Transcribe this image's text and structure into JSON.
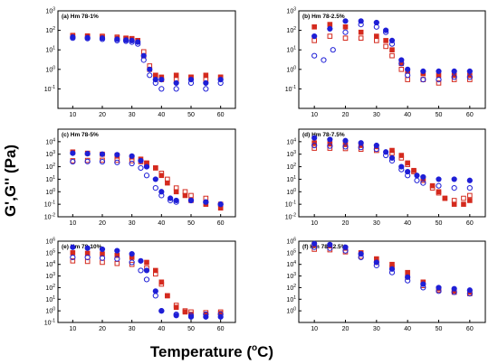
{
  "figure": {
    "ylabel": "G',G'' (Pa)",
    "xlabel": "Temperature (",
    "xlabel_unit": "o",
    "xlabel_tail": "C)"
  },
  "colors": {
    "red_series": "#d42a1e",
    "blue_series": "#1f1fd6",
    "highlight": "#ff9bd8"
  },
  "chart_data": [
    {
      "type": "scatter",
      "title": "(a) Hm 78-1%",
      "xlim": [
        5,
        65
      ],
      "xticks": [
        10,
        20,
        30,
        40,
        50,
        60
      ],
      "yscale": "log",
      "ylim": [
        0.01,
        1000
      ],
      "yticks": [
        "10^-1",
        "10^0",
        "10^1",
        "10^2",
        "10^3"
      ],
      "series": [
        {
          "color": "red",
          "marker": "filled",
          "x": [
            10,
            15,
            20,
            25,
            28,
            30,
            32,
            34,
            36,
            38,
            40,
            45,
            50,
            55,
            60
          ],
          "y": [
            50,
            48,
            45,
            40,
            38,
            35,
            30,
            5,
            1,
            0.5,
            0.4,
            0.5,
            0.4,
            0.5,
            0.4
          ]
        },
        {
          "color": "red",
          "marker": "open",
          "x": [
            10,
            15,
            20,
            25,
            28,
            30,
            32,
            34,
            36,
            38,
            40,
            45,
            50,
            55,
            60
          ],
          "y": [
            55,
            52,
            50,
            45,
            40,
            38,
            30,
            8,
            1.5,
            0.5,
            0.3,
            0.3,
            0.4,
            0.3,
            0.4
          ]
        },
        {
          "color": "blue",
          "marker": "filled",
          "x": [
            10,
            15,
            20,
            25,
            28,
            30,
            32,
            34,
            36,
            38,
            40,
            45,
            50,
            55,
            60
          ],
          "y": [
            45,
            42,
            40,
            35,
            32,
            30,
            25,
            5,
            1,
            0.3,
            0.3,
            0.2,
            0.3,
            0.2,
            0.3
          ]
        },
        {
          "color": "blue",
          "marker": "open",
          "x": [
            10,
            15,
            20,
            25,
            28,
            30,
            32,
            34,
            36,
            38,
            40,
            45,
            50,
            55,
            60
          ],
          "y": [
            40,
            38,
            35,
            30,
            28,
            25,
            20,
            3,
            0.5,
            0.2,
            0.1,
            0.1,
            0.2,
            0.1,
            0.2
          ]
        }
      ]
    },
    {
      "type": "scatter",
      "title": "(b) Hm 78-2.5%",
      "xlim": [
        5,
        65
      ],
      "xticks": [
        10,
        20,
        30,
        40,
        50,
        60
      ],
      "yscale": "log",
      "ylim": [
        0.01,
        1000
      ],
      "yticks": [
        "10^-1",
        "10^0",
        "10^1",
        "10^2",
        "10^3"
      ],
      "series": [
        {
          "color": "red",
          "marker": "filled",
          "x": [
            10,
            15,
            20,
            25,
            30,
            33,
            35,
            38,
            40,
            45,
            50,
            55,
            60
          ],
          "y": [
            150,
            200,
            150,
            80,
            50,
            30,
            10,
            2,
            0.8,
            0.6,
            0.5,
            0.5,
            0.5
          ]
        },
        {
          "color": "red",
          "marker": "open",
          "x": [
            10,
            15,
            20,
            25,
            30,
            33,
            35,
            38,
            40,
            45,
            50,
            55,
            60
          ],
          "y": [
            30,
            50,
            40,
            40,
            30,
            15,
            5,
            1,
            0.3,
            0.3,
            0.2,
            0.3,
            0.3
          ]
        },
        {
          "color": "blue",
          "marker": "filled",
          "x": [
            10,
            15,
            20,
            25,
            30,
            33,
            35,
            38,
            40,
            45,
            50,
            55,
            60
          ],
          "y": [
            50,
            120,
            300,
            300,
            250,
            100,
            30,
            3,
            1,
            0.8,
            0.8,
            0.8,
            0.8
          ]
        },
        {
          "color": "blue",
          "marker": "open",
          "x": [
            10,
            13,
            16,
            20,
            25,
            30,
            33,
            35,
            38,
            40,
            45,
            50,
            55,
            60
          ],
          "y": [
            5,
            3,
            10,
            80,
            200,
            150,
            80,
            20,
            2,
            0.5,
            0.3,
            0.3,
            0.4,
            0.4
          ]
        }
      ]
    },
    {
      "type": "scatter",
      "title": "(c) Hm 78-5%",
      "xlim": [
        5,
        65
      ],
      "xticks": [
        10,
        20,
        30,
        40,
        50,
        60
      ],
      "yscale": "log",
      "ylim": [
        0.01,
        100000
      ],
      "yticks": [
        "10^-2",
        "10^-1",
        "10^0",
        "10^1",
        "10^2",
        "10^3",
        "10^4"
      ],
      "series": [
        {
          "color": "red",
          "marker": "filled",
          "x": [
            10,
            15,
            20,
            25,
            30,
            33,
            35,
            38,
            40,
            42,
            45,
            48,
            50,
            55,
            60
          ],
          "y": [
            1500,
            1200,
            1000,
            800,
            600,
            400,
            200,
            80,
            20,
            5,
            1,
            0.5,
            0.2,
            0.1,
            0.05
          ]
        },
        {
          "color": "red",
          "marker": "open",
          "x": [
            10,
            15,
            20,
            25,
            30,
            33,
            35,
            38,
            40,
            42,
            45,
            48,
            50,
            55,
            60
          ],
          "y": [
            300,
            320,
            330,
            330,
            300,
            250,
            180,
            80,
            30,
            10,
            2,
            1,
            0.5,
            0.3,
            0.1
          ]
        },
        {
          "color": "blue",
          "marker": "filled",
          "x": [
            10,
            15,
            20,
            25,
            30,
            33,
            35,
            38,
            40,
            43,
            45,
            50,
            55,
            60
          ],
          "y": [
            1200,
            1100,
            1000,
            900,
            700,
            300,
            100,
            10,
            1,
            0.3,
            0.2,
            0.2,
            0.15,
            0.1
          ]
        },
        {
          "color": "blue",
          "marker": "open",
          "x": [
            10,
            15,
            20,
            25,
            30,
            33,
            35,
            38,
            40,
            43,
            45,
            50,
            55,
            60
          ],
          "y": [
            250,
            260,
            250,
            220,
            180,
            80,
            20,
            2,
            0.5,
            0.2,
            0.15,
            0.2,
            0.15,
            0.1
          ]
        }
      ]
    },
    {
      "type": "scatter",
      "title": "(d) Hm 78-7.5%",
      "xlim": [
        5,
        65
      ],
      "xticks": [
        10,
        20,
        30,
        40,
        50,
        60
      ],
      "yscale": "log",
      "ylim": [
        0.01,
        100000
      ],
      "yticks": [
        "10^-2",
        "10^-1",
        "10^0",
        "10^1",
        "10^2",
        "10^3",
        "10^4"
      ],
      "series": [
        {
          "color": "red",
          "marker": "filled",
          "x": [
            10,
            15,
            20,
            25,
            30,
            35,
            38,
            40,
            42,
            45,
            48,
            50,
            52,
            55,
            58,
            60
          ],
          "y": [
            8000,
            7000,
            6000,
            5000,
            4000,
            2000,
            800,
            200,
            50,
            10,
            3,
            1,
            0.3,
            0.1,
            0.1,
            0.2
          ]
        },
        {
          "color": "red",
          "marker": "open",
          "x": [
            10,
            15,
            20,
            25,
            30,
            35,
            38,
            40,
            42,
            45,
            48,
            50,
            52,
            55,
            58,
            60
          ],
          "y": [
            3000,
            3000,
            2800,
            2500,
            2000,
            1200,
            500,
            150,
            40,
            8,
            2,
            0.8,
            0.3,
            0.2,
            0.3,
            0.5
          ]
        },
        {
          "color": "blue",
          "marker": "filled",
          "x": [
            10,
            15,
            20,
            25,
            30,
            33,
            35,
            38,
            40,
            43,
            45,
            50,
            55,
            60
          ],
          "y": [
            20000,
            15000,
            12000,
            8000,
            5000,
            1500,
            500,
            100,
            40,
            20,
            15,
            10,
            10,
            8
          ]
        },
        {
          "color": "blue",
          "marker": "open",
          "x": [
            10,
            15,
            20,
            25,
            30,
            33,
            35,
            38,
            40,
            43,
            45,
            50,
            55,
            60
          ],
          "y": [
            5000,
            4500,
            4000,
            3500,
            2500,
            800,
            300,
            60,
            20,
            8,
            5,
            3,
            2,
            2
          ]
        }
      ]
    },
    {
      "type": "scatter",
      "title": "(e) Hm 78-10%",
      "xlim": [
        5,
        65
      ],
      "xticks": [
        10,
        20,
        30,
        40,
        50,
        60
      ],
      "yscale": "log",
      "ylim": [
        0.1,
        1000000
      ],
      "yticks": [
        "10^-1",
        "10^0",
        "10^1",
        "10^2",
        "10^3",
        "10^4",
        "10^5",
        "10^6"
      ],
      "series": [
        {
          "color": "red",
          "marker": "filled",
          "x": [
            10,
            15,
            20,
            25,
            30,
            35,
            38,
            40,
            42,
            45,
            48,
            50,
            55,
            60
          ],
          "y": [
            100000,
            90000,
            80000,
            60000,
            40000,
            15000,
            3000,
            300,
            20,
            2,
            0.8,
            0.5,
            0.5,
            0.6
          ]
        },
        {
          "color": "red",
          "marker": "open",
          "x": [
            10,
            15,
            20,
            25,
            30,
            35,
            38,
            40,
            42,
            45,
            48,
            50,
            55,
            60
          ],
          "y": [
            20000,
            18000,
            15000,
            12000,
            10000,
            5000,
            1500,
            200,
            20,
            3,
            1,
            0.8,
            0.7,
            0.8
          ]
        },
        {
          "color": "blue",
          "marker": "filled",
          "x": [
            10,
            15,
            20,
            25,
            30,
            33,
            35,
            38,
            40,
            45,
            50,
            55,
            60
          ],
          "y": [
            300000,
            250000,
            200000,
            150000,
            80000,
            20000,
            3000,
            50,
            1,
            0.4,
            0.3,
            0.3,
            0.3
          ]
        },
        {
          "color": "blue",
          "marker": "open",
          "x": [
            10,
            15,
            20,
            25,
            30,
            33,
            35,
            38,
            40,
            45,
            50,
            55,
            60
          ],
          "y": [
            40000,
            40000,
            35000,
            30000,
            15000,
            3000,
            500,
            20,
            1,
            0.5,
            0.4,
            0.5,
            0.5
          ]
        }
      ]
    },
    {
      "type": "scatter",
      "title": "(f) Hm 78-12.5%",
      "xlim": [
        5,
        65
      ],
      "xticks": [
        10,
        20,
        30,
        40,
        50,
        60
      ],
      "yscale": "log",
      "ylim": [
        0.1,
        1000000
      ],
      "yticks": [
        "10^0",
        "10^1",
        "10^2",
        "10^3",
        "10^4",
        "10^5",
        "10^6"
      ],
      "series": [
        {
          "color": "red",
          "marker": "filled",
          "x": [
            10,
            15,
            20,
            25,
            30,
            35,
            40,
            45,
            50,
            55,
            60
          ],
          "y": [
            500000,
            400000,
            250000,
            100000,
            30000,
            10000,
            2000,
            300,
            80,
            50,
            40
          ]
        },
        {
          "color": "red",
          "marker": "open",
          "x": [
            10,
            15,
            20,
            25,
            30,
            35,
            40,
            45,
            50,
            55,
            60
          ],
          "y": [
            200000,
            180000,
            120000,
            50000,
            15000,
            5000,
            800,
            150,
            60,
            40,
            30
          ]
        },
        {
          "color": "blue",
          "marker": "filled",
          "x": [
            10,
            15,
            20,
            25,
            30,
            35,
            40,
            45,
            50,
            55,
            60
          ],
          "y": [
            600000,
            500000,
            300000,
            80000,
            15000,
            4000,
            800,
            200,
            100,
            80,
            60
          ]
        },
        {
          "color": "blue",
          "marker": "open",
          "x": [
            10,
            15,
            20,
            25,
            30,
            35,
            40,
            45,
            50,
            55,
            60
          ],
          "y": [
            300000,
            250000,
            150000,
            40000,
            8000,
            2000,
            400,
            100,
            50,
            40,
            30
          ]
        }
      ]
    }
  ]
}
